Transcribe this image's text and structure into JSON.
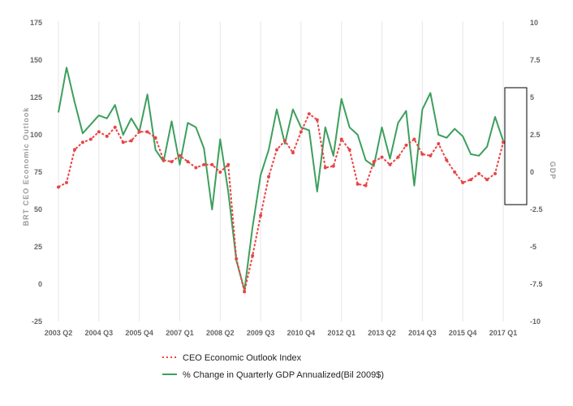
{
  "chart_data": {
    "type": "line",
    "title": "",
    "xlabel": "",
    "ylabel_left": "BRT CEO Economic Outlook",
    "ylabel_right": "GDP",
    "left_axis": {
      "range": [
        -25,
        175
      ],
      "ticks": [
        175,
        150,
        125,
        100,
        75,
        50,
        25,
        0,
        -25
      ]
    },
    "right_axis": {
      "range": [
        -10,
        10
      ],
      "ticks": [
        "10",
        "7.5",
        "5",
        "2.5",
        "0",
        "-2.5",
        "-5",
        "-7.5",
        "-10"
      ]
    },
    "x_tick_labels": [
      "2003 Q2",
      "2004 Q3",
      "2005 Q4",
      "2007 Q1",
      "2008 Q2",
      "2009 Q3",
      "2010 Q4",
      "2012 Q1",
      "2013 Q2",
      "2014 Q3",
      "2015 Q4",
      "2017 Q1"
    ],
    "x_tick_index": [
      0,
      5,
      10,
      15,
      20,
      25,
      30,
      35,
      40,
      45,
      50,
      55
    ],
    "grid": "vertical",
    "legend_position": "bottom",
    "highlight_box_around_last_quarter": true,
    "colors": {
      "ceo": "#e84545",
      "gdp": "#3d9f5d",
      "grid": "#e6e6e6",
      "box": "#000000"
    },
    "series": [
      {
        "name": "CEO Economic Outlook Index",
        "axis": "left",
        "style": "dashed-dots",
        "values": [
          65,
          68,
          90,
          95,
          97,
          102,
          99,
          105,
          95,
          96,
          102,
          102,
          98,
          83,
          82,
          86,
          82,
          78,
          80,
          80,
          75,
          80,
          17,
          -5,
          19,
          46,
          72,
          90,
          96,
          88,
          102,
          114,
          110,
          78,
          79,
          97,
          90,
          67,
          66,
          82,
          85,
          80,
          85,
          93,
          97,
          87,
          86,
          94,
          83,
          75,
          68,
          70,
          74,
          70,
          74,
          95
        ]
      },
      {
        "name": "% Change in Quarterly GDP Annualized(Bil 2009$)",
        "axis": "right",
        "style": "solid",
        "values": [
          4.0,
          7.0,
          4.7,
          2.6,
          3.2,
          3.8,
          3.6,
          4.5,
          2.5,
          3.6,
          2.7,
          5.2,
          1.5,
          0.7,
          3.4,
          0.5,
          3.3,
          3.0,
          1.6,
          -2.5,
          2.2,
          -1.3,
          -5.9,
          -7.9,
          -3.7,
          -0.2,
          1.5,
          4.2,
          1.9,
          4.2,
          3.0,
          2.8,
          -1.3,
          3.0,
          1.1,
          4.9,
          3.0,
          2.5,
          0.8,
          0.4,
          3.0,
          0.9,
          3.3,
          4.1,
          -0.9,
          4.2,
          5.3,
          2.5,
          2.3,
          2.9,
          2.4,
          1.2,
          1.1,
          1.7,
          3.7,
          2.1
        ]
      }
    ]
  }
}
